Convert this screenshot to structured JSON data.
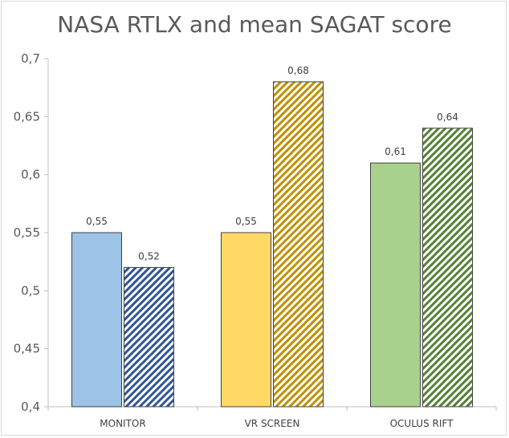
{
  "chart_data": {
    "type": "bar",
    "title": "NASA RTLX and mean SAGAT score",
    "categories": [
      "MONITOR",
      "VR SCREEN",
      "OCULUS RIFT"
    ],
    "series": [
      {
        "values": [
          0.55,
          0.55,
          0.61
        ],
        "value_labels": [
          "0,55",
          "0,55",
          "0,61"
        ],
        "fill": "solid",
        "colors": [
          "#9dc3e6",
          "#ffd966",
          "#a9d18e"
        ]
      },
      {
        "values": [
          0.52,
          0.68,
          0.64
        ],
        "value_labels": [
          "0,52",
          "0,68",
          "0,64"
        ],
        "fill": "diagonal-hatch",
        "colors": [
          "#2f5597",
          "#bf9000",
          "#548235"
        ]
      }
    ],
    "ylim": [
      0.4,
      0.7
    ],
    "yticks": [
      0.4,
      0.45,
      0.5,
      0.55,
      0.6,
      0.65,
      0.7
    ],
    "ytick_labels": [
      "0,4",
      "0,45",
      "0,5",
      "0,55",
      "0,6",
      "0,65",
      "0,7"
    ],
    "grid": false,
    "legend": "none",
    "xlabel": "",
    "ylabel": "",
    "axis_color": "#bfbfbf",
    "bar_outline_color": "#404040"
  }
}
